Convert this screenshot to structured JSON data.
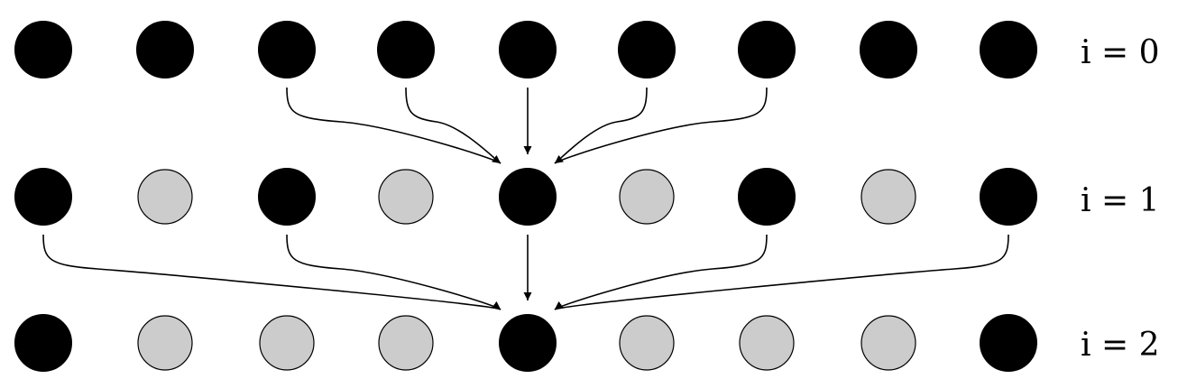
{
  "colors": {
    "active": "#000000",
    "inactive": "#cccccc",
    "stroke": "#000000",
    "arrow": "#000000"
  },
  "rows": [
    {
      "label": "i = 0",
      "nodes": [
        "active",
        "active",
        "active",
        "active",
        "active",
        "active",
        "active",
        "active",
        "active"
      ]
    },
    {
      "label": "i = 1",
      "nodes": [
        "active",
        "inactive",
        "active",
        "inactive",
        "active",
        "inactive",
        "active",
        "inactive",
        "active"
      ]
    },
    {
      "label": "i = 2",
      "nodes": [
        "active",
        "inactive",
        "inactive",
        "inactive",
        "active",
        "inactive",
        "inactive",
        "inactive",
        "active"
      ]
    }
  ],
  "edges": [
    {
      "from_row": 0,
      "from_node": 2,
      "to_row": 1,
      "to_node": 4
    },
    {
      "from_row": 0,
      "from_node": 3,
      "to_row": 1,
      "to_node": 4
    },
    {
      "from_row": 0,
      "from_node": 4,
      "to_row": 1,
      "to_node": 4
    },
    {
      "from_row": 0,
      "from_node": 5,
      "to_row": 1,
      "to_node": 4
    },
    {
      "from_row": 0,
      "from_node": 6,
      "to_row": 1,
      "to_node": 4
    },
    {
      "from_row": 1,
      "from_node": 0,
      "to_row": 2,
      "to_node": 4
    },
    {
      "from_row": 1,
      "from_node": 2,
      "to_row": 2,
      "to_node": 4
    },
    {
      "from_row": 1,
      "from_node": 4,
      "to_row": 2,
      "to_node": 4
    },
    {
      "from_row": 1,
      "from_node": 6,
      "to_row": 2,
      "to_node": 4
    },
    {
      "from_row": 1,
      "from_node": 8,
      "to_row": 2,
      "to_node": 4
    }
  ]
}
